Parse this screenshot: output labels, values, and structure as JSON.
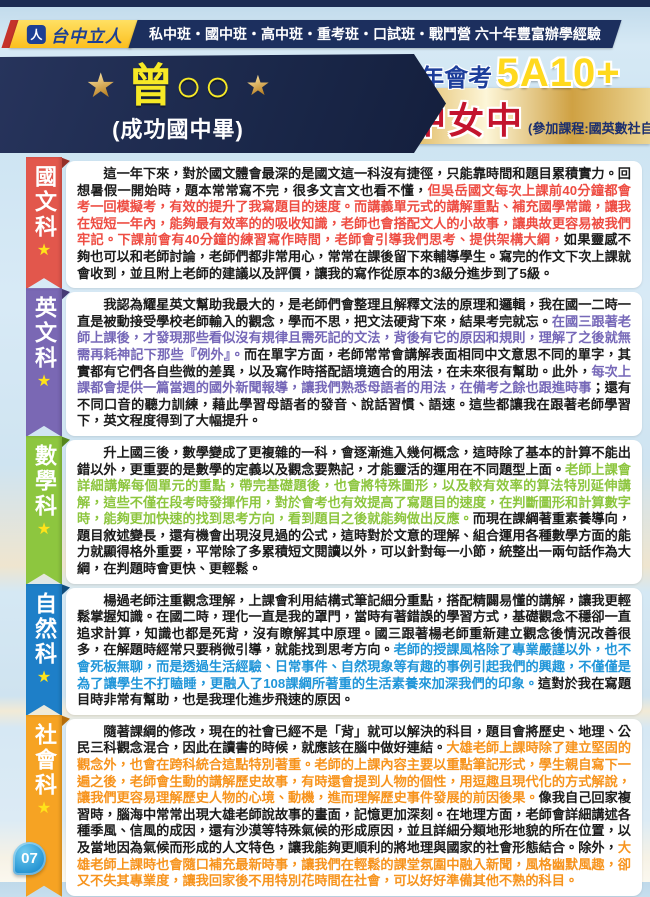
{
  "header": {
    "brand": "台中立人",
    "brand_icon": "liren-person-icon",
    "services": "私中班・國中班・高中班・重考班・口試班・戰鬥營 六十年豐富辦學經驗"
  },
  "hero": {
    "student_name": "曾○○",
    "student_school": "(成功國中畢)",
    "exam_year_label": "114年會考",
    "exam_score": "5A10+",
    "honor_text": "榮榜 台中女中",
    "courses_note": "(參加課程:國英數社自)"
  },
  "colors": {
    "brand_navy": "#1c2f5e",
    "brand_yellow": "#fcbf1e",
    "name_yellow": "#f6e926",
    "score_gold": "#ffd91e",
    "honor_red": "#c3142d",
    "gold_ribbon": "#ddb253",
    "page_badge_blue": "#1f8fd0"
  },
  "page_number": "07",
  "sections": [
    {
      "id": "chinese",
      "tab": "國文科",
      "tab_color": "#e2574c",
      "fold_color": "#952f28",
      "highlight_color": "#ee4d43",
      "segments": [
        {
          "style": "normal",
          "text": "這一年下來，對於國文體會最深的是國文這一科沒有捷徑，只能靠時間和題目累積實力。回想暑假一開始時，題本常常寫不完，很多文言文也看不懂，"
        },
        {
          "style": "highlight",
          "text": "但吳岳國文每次上課前40分鐘都會考一回模擬考，有效的提升了我寫題目的速度。而講義單元式的講解重點、補充國學常識，讓我在短短一年內，能夠最有效率的的吸收知識，老師也會搭配文人的小故事，讓典故更容易被我們牢記。下課前會有40分鐘的練習寫作時間，老師會引導我們思考、提供架構大綱，"
        },
        {
          "style": "normal",
          "text": "如果靈感不夠也可以和老師討論，老師們都非常用心，常常在課後留下來輔導學生。寫完的作文下次上課就會收到，並且附上老師的建議以及評價，讓我的寫作從原本的3級分進步到了5級。"
        }
      ]
    },
    {
      "id": "english",
      "tab": "英文科",
      "tab_color": "#7a68b4",
      "fold_color": "#463a75",
      "highlight_color": "#7668b8",
      "segments": [
        {
          "style": "normal",
          "text": "我認為耀星英文幫助我最大的，是老師們會整理且解釋文法的原理和邏輯，我在國一二時一直是被動接受學校老師輸入的觀念，學而不思，把文法硬背下來，結果考完就忘。"
        },
        {
          "style": "highlight",
          "text": "在國三跟著老師上課後，才發現那些看似沒有規律且需死記的文法，背後有它的原因和規則，理解了之後就無需再耗神記下那些『例外』。"
        },
        {
          "style": "normal",
          "text": "而在單字方面，老師常常會講解表面相同中文意思不同的單字，其實都有它們各自些微的差異，以及寫作時搭配語境適合的用法，在未來很有幫助。此外，"
        },
        {
          "style": "highlight",
          "text": "每次上課都會提供一篇當週的國外新聞報導，讓我們熟悉母語者的用法，在備考之餘也跟進時事"
        },
        {
          "style": "normal",
          "text": "；還有不同口音的聽力訓練，藉此學習母語者的發音、說話習慣、語速。這些都讓我在跟著老師學習下，英文程度得到了大幅提升。"
        }
      ]
    },
    {
      "id": "math",
      "tab": "數學科",
      "tab_color": "#8dc63f",
      "fold_color": "#55861c",
      "highlight_color": "#8dc63f",
      "segments": [
        {
          "style": "normal",
          "text": "升上國三後，數學變成了更複雜的一科，會逐漸進入幾何概念，這時除了基本的計算不能出錯以外，更重要的是數學的定義以及觀念要熟記，才能靈活的運用在不同題型上面。"
        },
        {
          "style": "highlight",
          "text": "老師上課會詳細講解每個單元的重點，帶完基礎題後，也會將特殊圖形，以及較有效率的算法特別延伸講解，這些不僅在段考時發揮作用，對於會考也有效提高了寫題目的速度，在判斷圖形和計算數字時，能夠更加快速的找到思考方向，看到題目之後就能夠做出反應。"
        },
        {
          "style": "normal",
          "text": "而現在課綱著重素養導向，題目敘述變長，還有機會出現沒見過的公式，這時對於文意的理解、組合運用各種數學方面的能力就顯得格外重要，平常除了多累積短文閱讀以外，可以針對每一小節，統整出一兩句話作為大綱，在判題時會更快、更輕鬆。"
        }
      ]
    },
    {
      "id": "science",
      "tab": "自然科",
      "tab_color": "#1e7fc8",
      "fold_color": "#0f4c7c",
      "highlight_color": "#2196d9",
      "segments": [
        {
          "style": "normal",
          "text": "楊過老師注重觀念理解，上課會利用結構式筆記細分重點，搭配精闢易懂的講解，讓我更輕鬆掌握知識。在國二時，理化一直是我的罩門，當時有著錯誤的學習方式，基礎觀念不穩卻一直追求計算，知識也都是死背，沒有瞭解其中原理。國三跟著楊老師重新建立觀念後情況改善很多，在解題時經常只要稍微引導，就能找到思考方向。"
        },
        {
          "style": "highlight",
          "text": "老師的授課風格除了專業嚴謹以外，也不會死板無聊，而是透過生活經驗、日常事件、自然現象等有趣的事例引起我們的興趣，不僅僅是為了讓學生不打瞌睡，更融入了108課綱所著重的生活素養來加深我們的印象。"
        },
        {
          "style": "normal",
          "text": "這對於我在寫題目時非常有幫助，也是我理化進步飛速的原因。"
        }
      ]
    },
    {
      "id": "social",
      "tab": "社會科",
      "tab_color": "#f6a323",
      "fold_color": "#b56d0a",
      "highlight_color": "#f7941e",
      "segments": [
        {
          "style": "normal",
          "text": "隨著課綱的修改，現在的社會已經不是「背」就可以解決的科目，題目會將歷史、地理、公民三科觀念混合，因此在讀書的時候，就應該在腦中做好連結。"
        },
        {
          "style": "highlight",
          "text": "大雄老師上課時除了建立堅固的觀念外，也會在跨科統合這點特別著重。老師的上課內容主要以重點筆記形式，學生親自寫下一遍之後，老師會生動的講解歷史故事，有時還會提到人物的個性，用逗趣且現代化的方式解說，讓我們更容易理解歷史人物的心境、動機，進而理解歷史事件發展的前因後果。"
        },
        {
          "style": "normal",
          "text": "像我自己回家複習時，腦海中常常出現大雄老師說故事的畫面，記憶更加深刻。在地理方面，老師會詳細講述各種季風、信風的成因，還有沙漠等特殊氣候的形成原因，並且詳細分類地形地貌的所在位置，以及當地因為氣候而形成的人文特色，讓我能夠更順利的將地理與國家的社會形態結合。除外，"
        },
        {
          "style": "highlight",
          "text": "大雄老師上課時也會隨口補充最新時事，讓我們在輕鬆的課堂氛圍中融入新聞，風格幽默風趣，卻又不失其專業度，讓我回家後不用特別花時間在社會，可以好好準備其他不熟的科目。"
        }
      ]
    }
  ]
}
